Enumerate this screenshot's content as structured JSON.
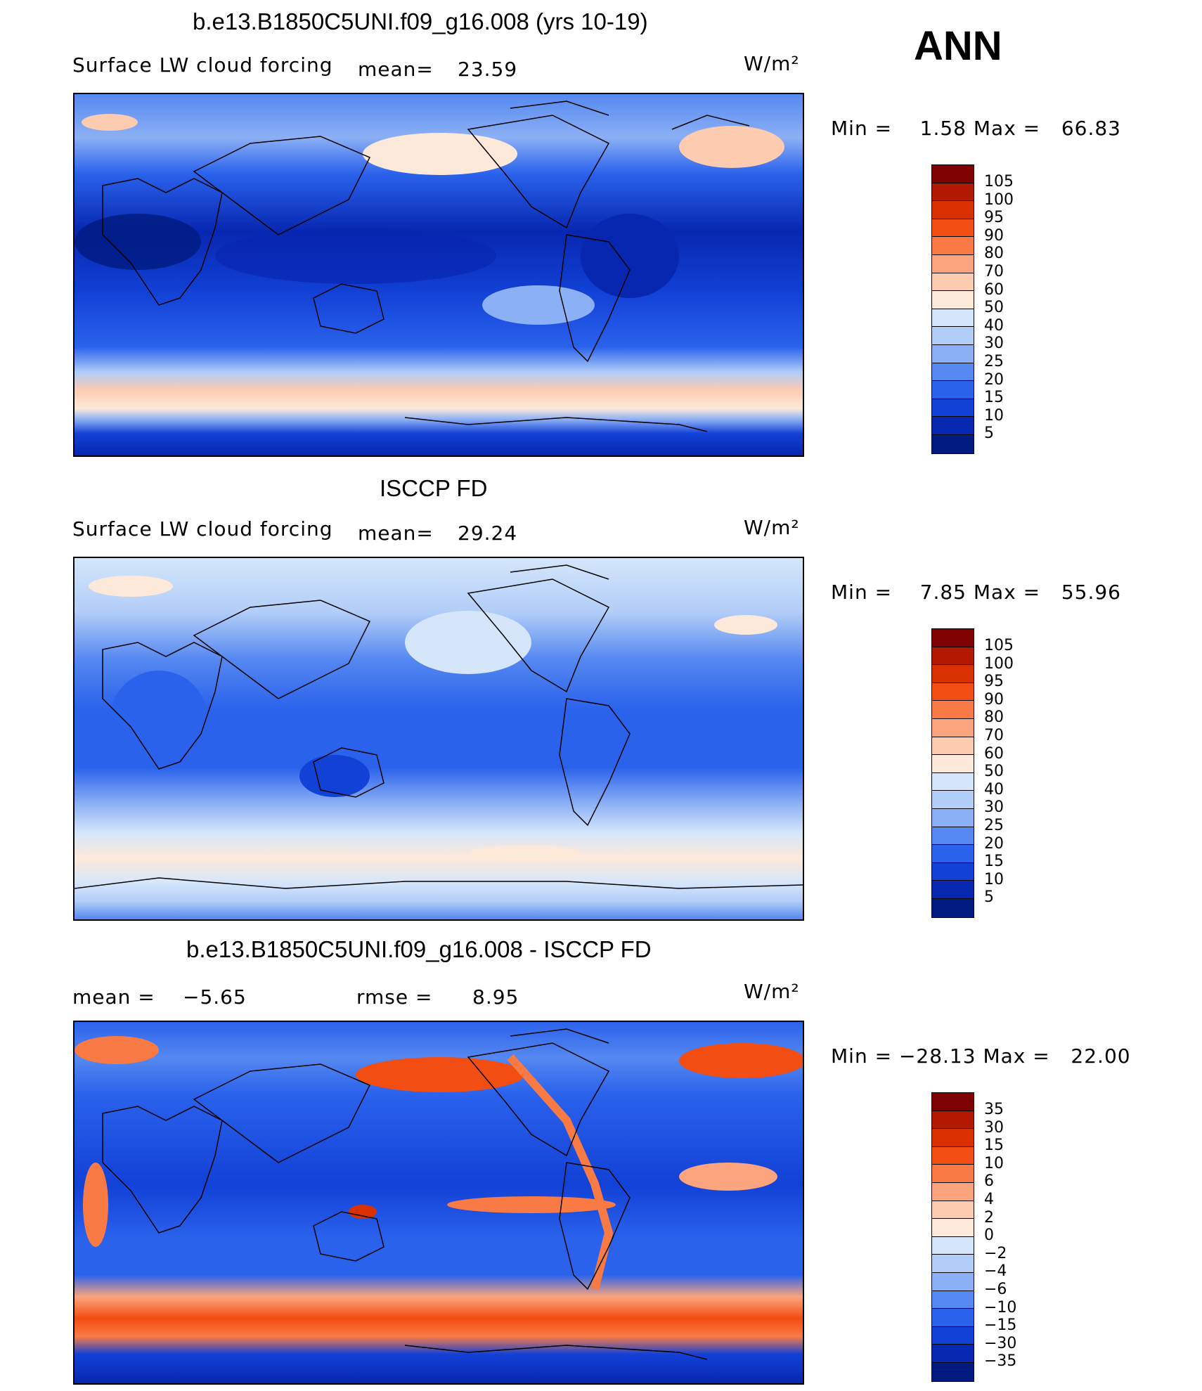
{
  "season": "ANN",
  "panels": [
    {
      "title": "b.e13.B1850C5UNI.f09_g16.008 (yrs 10-19)",
      "variable": "Surface LW cloud forcing",
      "mean_label": "mean=",
      "mean_value": "23.59",
      "units": "W/m²",
      "minmax": "Min =    1.58 Max =   66.83",
      "palette": "abs",
      "colorbar_labels": [
        "105",
        "100",
        "95",
        "90",
        "80",
        "70",
        "60",
        "50",
        "40",
        "30",
        "25",
        "20",
        "15",
        "10",
        "5"
      ]
    },
    {
      "title": "ISCCP FD",
      "variable": "Surface LW cloud forcing",
      "mean_label": "mean=",
      "mean_value": "29.24",
      "units": "W/m²",
      "minmax": "Min =    7.85 Max =   55.96",
      "palette": "abs",
      "colorbar_labels": [
        "105",
        "100",
        "95",
        "90",
        "80",
        "70",
        "60",
        "50",
        "40",
        "30",
        "25",
        "20",
        "15",
        "10",
        "5"
      ]
    },
    {
      "title": "b.e13.B1850C5UNI.f09_g16.008 - ISCCP FD",
      "mean_label": "mean =",
      "mean_value": "−5.65",
      "rmse_label": "rmse =",
      "rmse_value": "8.95",
      "units": "W/m²",
      "minmax": "Min = −28.13 Max =   22.00",
      "palette": "diff",
      "colorbar_labels": [
        "35",
        "30",
        "15",
        "10",
        "6",
        "4",
        "2",
        "0",
        "−2",
        "−4",
        "−6",
        "−10",
        "−15",
        "−30",
        "−35"
      ]
    }
  ],
  "colors": {
    "colorbar": [
      "#7f0000",
      "#b31900",
      "#d93000",
      "#f24d12",
      "#fa7a45",
      "#fca47d",
      "#fdcbb0",
      "#fde9da",
      "#d5e6fb",
      "#b2cdf8",
      "#8cb0f5",
      "#5588f0",
      "#2a62ec",
      "#1241d6",
      "#0727b0",
      "#001a80"
    ],
    "ocean_deep": "#1a3fd0",
    "land_outline": "#000000"
  }
}
